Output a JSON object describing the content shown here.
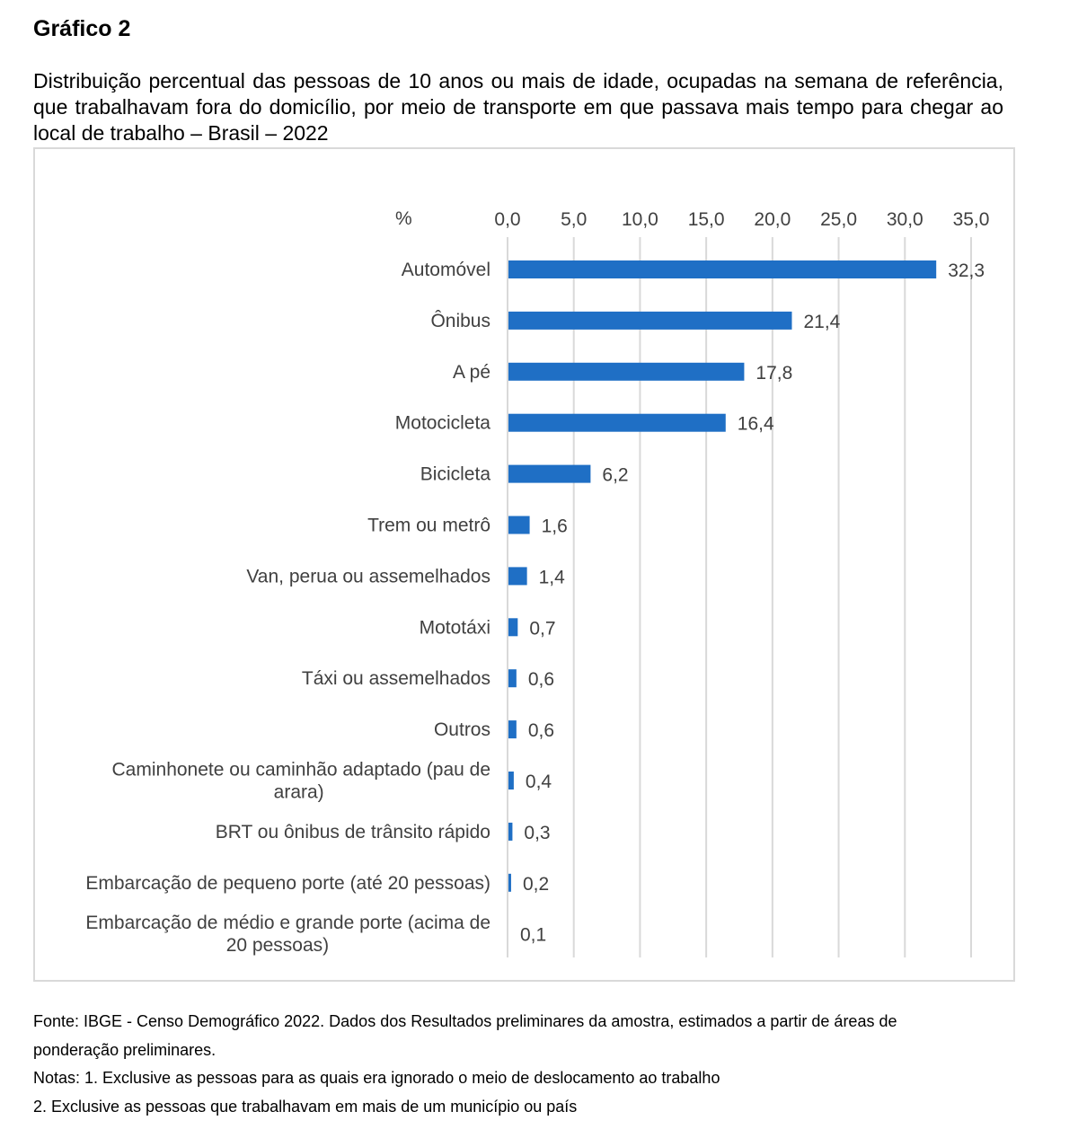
{
  "figure_label": "Gráfico 2",
  "figure_title": "Distribuição percentual das pessoas de 10 anos ou mais de idade, ocupadas na semana de referência, que trabalhavam fora do domicílio, por meio de transporte em que passava mais tempo para chegar ao local de trabalho – Brasil – 2022",
  "chart_data": {
    "type": "bar",
    "orientation": "horizontal",
    "title": "",
    "xlabel": "%",
    "ylabel": "",
    "xlim": [
      0,
      35
    ],
    "x_ticks": [
      0,
      5,
      10,
      15,
      20,
      25,
      30,
      35
    ],
    "x_tick_labels": [
      "0,0",
      "5,0",
      "10,0",
      "15,0",
      "20,0",
      "25,0",
      "30,0",
      "35,0"
    ],
    "x_axis_position": "top",
    "grid": true,
    "bar_color": "#1f6fc5",
    "categories": [
      "Automóvel",
      "Ônibus",
      "A pé",
      "Motocicleta",
      "Bicicleta",
      "Trem ou metrô",
      "Van, perua ou assemelhados",
      "Mototáxi",
      "Táxi ou assemelhados",
      "Outros",
      "Caminhonete ou caminhão adaptado (pau de arara)",
      "BRT ou ônibus de trânsito rápido",
      "Embarcação de pequeno porte (até 20 pessoas)",
      "Embarcação de médio e grande porte (acima de 20 pessoas)"
    ],
    "category_lines": [
      [
        "Automóvel"
      ],
      [
        "Ônibus"
      ],
      [
        "A pé"
      ],
      [
        "Motocicleta"
      ],
      [
        "Bicicleta"
      ],
      [
        "Trem ou metrô"
      ],
      [
        "Van, perua ou assemelhados"
      ],
      [
        "Mototáxi"
      ],
      [
        "Táxi ou assemelhados"
      ],
      [
        "Outros"
      ],
      [
        "Caminhonete ou caminhão adaptado (pau de",
        "arara)"
      ],
      [
        "BRT ou ônibus de trânsito rápido"
      ],
      [
        "Embarcação de pequeno porte (até 20 pessoas)"
      ],
      [
        "Embarcação de médio e grande porte (acima de",
        "20 pessoas)"
      ]
    ],
    "values": [
      32.3,
      21.4,
      17.8,
      16.4,
      6.2,
      1.6,
      1.4,
      0.7,
      0.6,
      0.6,
      0.4,
      0.3,
      0.2,
      0.1
    ],
    "value_labels": [
      "32,3",
      "21,4",
      "17,8",
      "16,4",
      "6,2",
      "1,6",
      "1,4",
      "0,7",
      "0,6",
      "0,6",
      "0,4",
      "0,3",
      "0,2",
      "0,1"
    ],
    "legend": null
  },
  "notes": {
    "source_line1": "Fonte: IBGE - Censo Demográfico 2022. Dados dos Resultados preliminares da amostra, estimados a partir de áreas de",
    "source_line2": "ponderação preliminares.",
    "note1": "Notas: 1. Exclusive as pessoas para as quais era ignorado o meio de deslocamento ao trabalho",
    "note2": "2. Exclusive as pessoas que trabalhavam em mais de um município ou país"
  }
}
